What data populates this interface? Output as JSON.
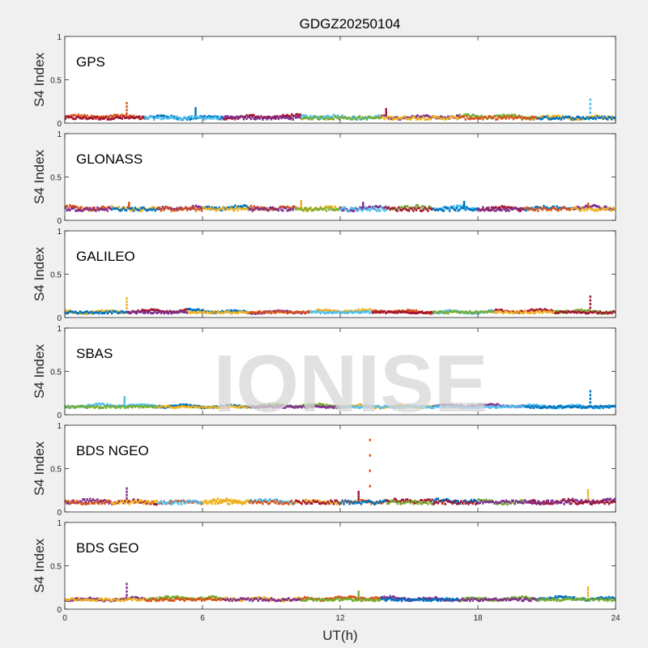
{
  "title": "GDGZ20250104",
  "watermark": "IONISE",
  "xlabel": "UT(h)",
  "ylabel": "S4 Index",
  "x_ticks": [
    "0",
    "6",
    "12",
    "18",
    "24"
  ],
  "y_ticks": [
    "0",
    "0.5",
    "1"
  ],
  "colors": {
    "background": "#f0f0f0",
    "axes_bg": "#ffffff",
    "blue": "#0072BD",
    "orange": "#D95319",
    "yellow": "#EDB120",
    "purple": "#7E2F8E",
    "green": "#77AC30",
    "cyan": "#4DBEEE",
    "crimson": "#A2142F",
    "watermark": "#d8d8d8"
  },
  "chart_data": [
    {
      "type": "scatter",
      "panel_label": "GPS",
      "xlim": [
        0,
        24
      ],
      "ylim": [
        0,
        1
      ],
      "xlabel": "UT(h)",
      "ylabel": "S4 Index",
      "baseline": 0.07,
      "noise": 0.03,
      "color_sequence": [
        "orange",
        "blue",
        "crimson",
        "cyan",
        "purple",
        "green",
        "yellow"
      ],
      "spikes": [
        [
          2.7,
          0.23
        ],
        [
          5.7,
          0.17
        ],
        [
          14.0,
          0.16
        ],
        [
          22.9,
          0.27
        ]
      ]
    },
    {
      "type": "scatter",
      "panel_label": "GLONASS",
      "xlim": [
        0,
        24
      ],
      "ylim": [
        0,
        1
      ],
      "xlabel": "UT(h)",
      "ylabel": "S4 Index",
      "baseline": 0.14,
      "noise": 0.035,
      "color_sequence": [
        "orange",
        "yellow",
        "purple",
        "blue",
        "orange",
        "yellow",
        "purple",
        "green",
        "cyan",
        "crimson",
        "blue",
        "purple"
      ],
      "spikes": [
        [
          2.8,
          0.2
        ],
        [
          10.3,
          0.22
        ],
        [
          13.0,
          0.2
        ],
        [
          17.4,
          0.21
        ],
        [
          22.8,
          0.19
        ]
      ]
    },
    {
      "type": "scatter",
      "panel_label": "GALILEO",
      "xlim": [
        0,
        24
      ],
      "ylim": [
        0,
        1
      ],
      "xlabel": "UT(h)",
      "ylabel": "S4 Index",
      "baseline": 0.07,
      "noise": 0.02,
      "color_sequence": [
        "yellow",
        "crimson",
        "blue",
        "purple",
        "yellow",
        "orange",
        "cyan",
        "crimson",
        "green"
      ],
      "spikes": [
        [
          2.7,
          0.22
        ],
        [
          22.9,
          0.24
        ]
      ]
    },
    {
      "type": "scatter",
      "panel_label": "SBAS",
      "xlim": [
        0,
        24
      ],
      "ylim": [
        0,
        1
      ],
      "xlabel": "UT(h)",
      "ylabel": "S4 Index",
      "baseline": 0.1,
      "noise": 0.02,
      "color_sequence": [
        "cyan",
        "blue",
        "green",
        "yellow",
        "purple",
        "cyan"
      ],
      "spikes": [
        [
          2.6,
          0.2
        ],
        [
          22.9,
          0.27
        ]
      ]
    },
    {
      "type": "scatter",
      "panel_label": "BDS NGEO",
      "xlim": [
        0,
        24
      ],
      "ylim": [
        0,
        1
      ],
      "xlabel": "UT(h)",
      "ylabel": "S4 Index",
      "baseline": 0.12,
      "noise": 0.035,
      "color_sequence": [
        "purple",
        "crimson",
        "orange",
        "yellow",
        "cyan",
        "yellow",
        "orange",
        "crimson",
        "blue",
        "green",
        "crimson",
        "purple"
      ],
      "spikes": [
        [
          2.7,
          0.27
        ],
        [
          12.8,
          0.23
        ],
        [
          13.3,
          0.83
        ],
        [
          22.8,
          0.25
        ]
      ]
    },
    {
      "type": "scatter",
      "panel_label": "BDS GEO",
      "xlim": [
        0,
        24
      ],
      "ylim": [
        0,
        1
      ],
      "xlabel": "UT(h)",
      "ylabel": "S4 Index",
      "baseline": 0.12,
      "noise": 0.025,
      "color_sequence": [
        "purple",
        "green",
        "yellow",
        "orange",
        "purple",
        "green",
        "blue"
      ],
      "spikes": [
        [
          2.7,
          0.29
        ],
        [
          12.8,
          0.2
        ],
        [
          22.8,
          0.25
        ]
      ]
    }
  ]
}
